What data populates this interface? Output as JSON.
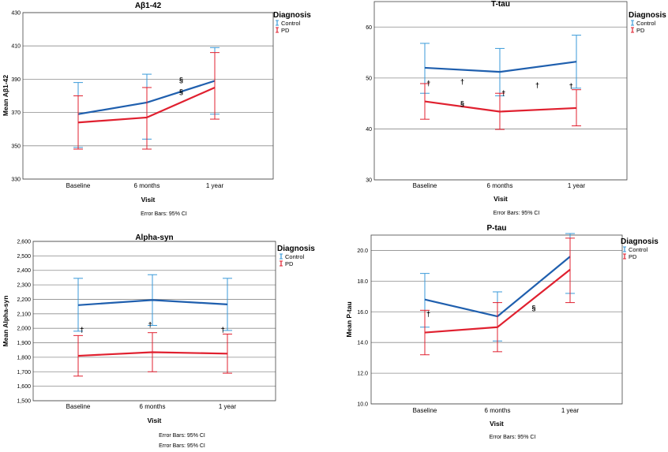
{
  "colors": {
    "control": "#1f5fae",
    "control_bar": "#3a9ad9",
    "pd": "#e0202f",
    "grid": "#8c8c8c",
    "frame": "#444444"
  },
  "chart_data": [
    {
      "type": "line",
      "title": "Aβ1-42",
      "xlabel": "Visit",
      "ylabel": "Mean Aβ1-42",
      "categories": [
        "Baseline",
        "6 months",
        "1 year"
      ],
      "ylim": [
        330,
        430
      ],
      "yticks": [
        "330",
        "350",
        "370",
        "390",
        "410",
        "430"
      ],
      "legend": {
        "title": "Diagnosis",
        "entries": [
          "Control",
          "PD"
        ]
      },
      "series": [
        {
          "name": "Control",
          "values": [
            369,
            376,
            389
          ],
          "lower": [
            349,
            354,
            369
          ],
          "upper": [
            388,
            393,
            409
          ]
        },
        {
          "name": "PD",
          "values": [
            364,
            367,
            385
          ],
          "lower": [
            348,
            348,
            366
          ],
          "upper": [
            380,
            385,
            406
          ]
        }
      ],
      "annotations": [
        {
          "text": "§",
          "category": 1.5,
          "y": 388
        },
        {
          "text": "§",
          "category": 1.5,
          "y": 381
        }
      ],
      "note": "Error Bars: 95% CI"
    },
    {
      "type": "line",
      "title": "T-tau",
      "xlabel": "Visit",
      "ylabel": "",
      "categories": [
        "Baseline",
        "6 months",
        "1 year"
      ],
      "ylim": [
        30,
        65
      ],
      "yticks": [
        "30",
        "40",
        "50",
        "60"
      ],
      "legend": {
        "title": "Diagnosis",
        "entries": [
          "Control",
          "PD"
        ]
      },
      "series": [
        {
          "name": "Control",
          "values": [
            52,
            51.2,
            53.2
          ],
          "lower": [
            47,
            46.5,
            48
          ],
          "upper": [
            56.8,
            55.8,
            58.4
          ]
        },
        {
          "name": "PD",
          "values": [
            45.4,
            43.4,
            44.1
          ],
          "lower": [
            41.9,
            39.9,
            40.6
          ],
          "upper": [
            48.9,
            47,
            47.7
          ]
        }
      ],
      "annotations": [
        {
          "text": "†",
          "category": 0.05,
          "y": 48.5
        },
        {
          "text": "†",
          "category": 0.5,
          "y": 48.8
        },
        {
          "text": "†",
          "category": 1.05,
          "y": 46.6
        },
        {
          "text": "†",
          "category": 1.5,
          "y": 48.1
        },
        {
          "text": "†",
          "category": 1.95,
          "y": 48
        },
        {
          "text": "§",
          "category": 0.5,
          "y": 44.5
        }
      ],
      "note": "Error Bars: 95% CI"
    },
    {
      "type": "line",
      "title": "Alpha-syn",
      "xlabel": "Visit",
      "ylabel": "Mean Alpha-syn",
      "categories": [
        "Baseline",
        "6 months",
        "1 year"
      ],
      "ylim": [
        1500,
        2600
      ],
      "yticks": [
        "1,500",
        "1,600",
        "1,700",
        "1,800",
        "1,900",
        "2,000",
        "2,100",
        "2,200",
        "2,300",
        "2,400",
        "2,500",
        "2,600"
      ],
      "legend": {
        "title": "Diagnosis",
        "entries": [
          "Control",
          "PD"
        ]
      },
      "series": [
        {
          "name": "Control",
          "values": [
            2160,
            2195,
            2165
          ],
          "lower": [
            1980,
            2020,
            1985
          ],
          "upper": [
            2345,
            2370,
            2345
          ]
        },
        {
          "name": "PD",
          "values": [
            1810,
            1835,
            1825
          ],
          "lower": [
            1670,
            1700,
            1690
          ],
          "upper": [
            1950,
            1970,
            1960
          ]
        }
      ],
      "annotations": [
        {
          "text": "†",
          "category": 0.05,
          "y": 1975
        },
        {
          "text": "†",
          "category": 0.97,
          "y": 2010
        },
        {
          "text": "†",
          "category": 1.95,
          "y": 1975
        }
      ],
      "notes": [
        "Error Bars: 95% CI",
        "Error Bars: 95% CI"
      ]
    },
    {
      "type": "line",
      "title": "P-tau",
      "xlabel": "Visit",
      "ylabel": "Mean P-tau",
      "categories": [
        "Baseline",
        "6 months",
        "1 year"
      ],
      "ylim": [
        10,
        21
      ],
      "yticks": [
        "10.0",
        "12.0",
        "14.0",
        "16.0",
        "18.0",
        "20.0"
      ],
      "legend": {
        "title": "Diagnosis",
        "entries": [
          "Control",
          "PD"
        ]
      },
      "series": [
        {
          "name": "Control",
          "values": [
            16.8,
            15.7,
            19.6
          ],
          "lower": [
            15,
            14.1,
            17.2
          ],
          "upper": [
            18.5,
            17.3,
            21.1
          ]
        },
        {
          "name": "PD",
          "values": [
            14.65,
            15,
            18.75
          ],
          "lower": [
            13.2,
            13.4,
            16.6
          ],
          "upper": [
            16.1,
            16.6,
            20.8
          ]
        }
      ],
      "annotations": [
        {
          "text": "†",
          "category": 0.05,
          "y": 15.7
        },
        {
          "text": "§",
          "category": 1.5,
          "y": 16.1
        }
      ],
      "note": "Error Bars: 95% CI"
    }
  ]
}
